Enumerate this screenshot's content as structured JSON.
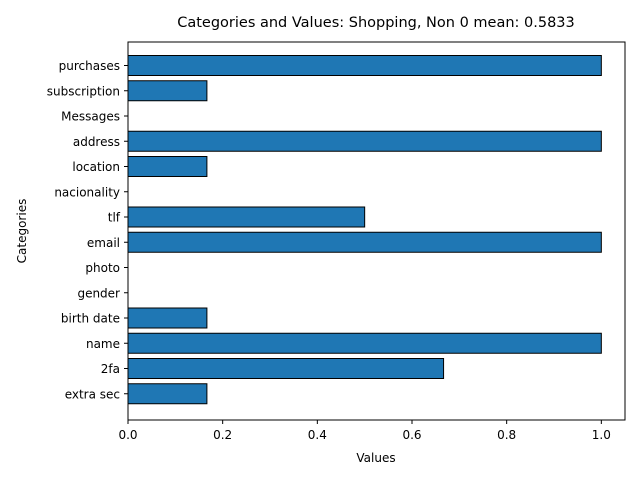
{
  "chart_data": {
    "type": "bar",
    "orientation": "horizontal",
    "title": "Categories and Values: Shopping, Non 0 mean: 0.5833",
    "xlabel": "Values",
    "ylabel": "Categories",
    "xlim": [
      0,
      1.05
    ],
    "xticks": [
      0.0,
      0.2,
      0.4,
      0.6,
      0.8,
      1.0
    ],
    "xtick_labels": [
      "0.0",
      "0.2",
      "0.4",
      "0.6",
      "0.8",
      "1.0"
    ],
    "grid": false,
    "bar_color": "#1f77b4",
    "edge_color": "#000000",
    "categories": [
      "purchases",
      "subscription",
      "Messages",
      "address",
      "location",
      "nacionality",
      "tlf",
      "email",
      "photo",
      "gender",
      "birth date",
      "name",
      "2fa",
      "extra sec"
    ],
    "values": [
      1.0,
      0.1667,
      0,
      1.0,
      0.1667,
      0,
      0.5,
      1.0,
      0,
      0,
      0.1667,
      1.0,
      0.6667,
      0.1667
    ]
  }
}
